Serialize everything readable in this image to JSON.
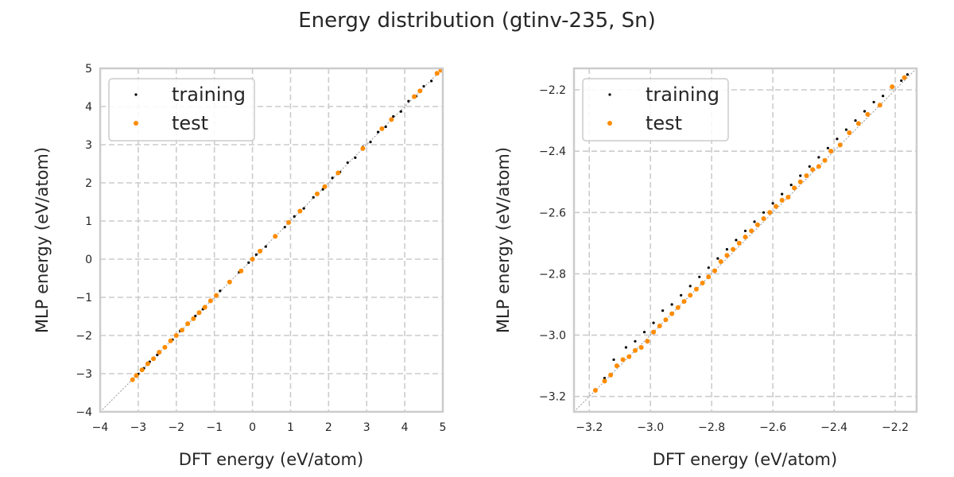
{
  "figure": {
    "title": "Energy distribution (gtinv-235, Sn)"
  },
  "colors": {
    "training": "#000000",
    "test": "#ff8c00",
    "grid": "#cccccc",
    "spine": "#cccccc",
    "diagonal": "#999999"
  },
  "chart_data": [
    {
      "type": "scatter",
      "xlabel": "DFT energy (eV/atom)",
      "ylabel": "MLP energy (eV/atom)",
      "xlim": [
        -4,
        5
      ],
      "ylim": [
        -4,
        5
      ],
      "xticks": [
        -4,
        -3,
        -2,
        -1,
        0,
        1,
        2,
        3,
        4,
        5
      ],
      "yticks": [
        -4,
        -3,
        -2,
        -1,
        0,
        1,
        2,
        3,
        4,
        5
      ],
      "tick_labels_x": [
        "−4",
        "−3",
        "−2",
        "−1",
        "0",
        "1",
        "2",
        "3",
        "4",
        "5"
      ],
      "tick_labels_y": [
        "−4",
        "−3",
        "−2",
        "−1",
        "0",
        "1",
        "2",
        "3",
        "4",
        "5"
      ],
      "grid": true,
      "legend_position": "upper-left",
      "diagonal": true,
      "series": [
        {
          "name": "training",
          "color": "#000000",
          "points": [
            [
              -3.15,
              -3.16
            ],
            [
              -3.0,
              -3.01
            ],
            [
              -2.85,
              -2.86
            ],
            [
              -2.7,
              -2.69
            ],
            [
              -2.5,
              -2.51
            ],
            [
              -2.3,
              -2.3
            ],
            [
              -2.1,
              -2.11
            ],
            [
              -1.9,
              -1.88
            ],
            [
              -1.7,
              -1.71
            ],
            [
              -1.5,
              -1.49
            ],
            [
              -1.3,
              -1.31
            ],
            [
              -1.1,
              -1.09
            ],
            [
              -0.85,
              -0.83
            ],
            [
              -0.6,
              -0.61
            ],
            [
              -0.35,
              -0.34
            ],
            [
              -0.1,
              -0.09
            ],
            [
              0.1,
              0.12
            ],
            [
              0.35,
              0.33
            ],
            [
              0.6,
              0.62
            ],
            [
              0.85,
              0.84
            ],
            [
              1.1,
              1.12
            ],
            [
              1.35,
              1.33
            ],
            [
              1.6,
              1.62
            ],
            [
              1.85,
              1.83
            ],
            [
              2.1,
              2.13
            ],
            [
              2.3,
              2.28
            ],
            [
              2.5,
              2.53
            ],
            [
              2.7,
              2.66
            ],
            [
              2.9,
              2.94
            ],
            [
              3.1,
              3.07
            ],
            [
              3.3,
              3.33
            ],
            [
              3.5,
              3.47
            ],
            [
              3.7,
              3.74
            ],
            [
              3.9,
              3.87
            ],
            [
              4.1,
              4.14
            ],
            [
              4.3,
              4.27
            ],
            [
              4.5,
              4.53
            ],
            [
              4.7,
              4.67
            ],
            [
              4.85,
              4.88
            ]
          ]
        },
        {
          "name": "test",
          "color": "#ff8c00",
          "points": [
            [
              -3.15,
              -3.16
            ],
            [
              -3.05,
              -3.05
            ],
            [
              -2.9,
              -2.9
            ],
            [
              -2.75,
              -2.74
            ],
            [
              -2.6,
              -2.61
            ],
            [
              -2.45,
              -2.44
            ],
            [
              -2.3,
              -2.31
            ],
            [
              -2.15,
              -2.14
            ],
            [
              -2.0,
              -2.0
            ],
            [
              -1.85,
              -1.86
            ],
            [
              -1.7,
              -1.69
            ],
            [
              -1.55,
              -1.56
            ],
            [
              -1.4,
              -1.4
            ],
            [
              -1.25,
              -1.26
            ],
            [
              -1.1,
              -1.09
            ],
            [
              -0.95,
              -0.95
            ],
            [
              -0.6,
              -0.6
            ],
            [
              -0.3,
              -0.31
            ],
            [
              0.0,
              0.0
            ],
            [
              0.2,
              0.21
            ],
            [
              0.6,
              0.6
            ],
            [
              0.95,
              0.96
            ],
            [
              1.25,
              1.26
            ],
            [
              1.7,
              1.71
            ],
            [
              1.9,
              1.9
            ],
            [
              2.25,
              2.26
            ],
            [
              2.9,
              2.9
            ],
            [
              3.4,
              3.42
            ],
            [
              3.65,
              3.66
            ],
            [
              4.25,
              4.26
            ],
            [
              4.4,
              4.41
            ],
            [
              4.85,
              4.87
            ],
            [
              4.95,
              4.95
            ]
          ]
        }
      ]
    },
    {
      "type": "scatter",
      "xlabel": "DFT energy (eV/atom)",
      "ylabel": "MLP energy (eV/atom)",
      "xlim": [
        -3.25,
        -2.13
      ],
      "ylim": [
        -3.25,
        -2.13
      ],
      "xticks": [
        -3.2,
        -3.0,
        -2.8,
        -2.6,
        -2.4,
        -2.2
      ],
      "yticks": [
        -3.2,
        -3.0,
        -2.8,
        -2.6,
        -2.4,
        -2.2
      ],
      "tick_labels_x": [
        "−3.2",
        "−3.0",
        "−2.8",
        "−2.6",
        "−2.4",
        "−2.2"
      ],
      "tick_labels_y": [
        "−3.2",
        "−3.0",
        "−2.8",
        "−2.6",
        "−2.4",
        "−2.2"
      ],
      "grid": true,
      "legend_position": "upper-left",
      "diagonal": true,
      "series": [
        {
          "name": "training",
          "color": "#000000",
          "points": [
            [
              -3.15,
              -3.14
            ],
            [
              -3.12,
              -3.08
            ],
            [
              -3.08,
              -3.04
            ],
            [
              -3.05,
              -3.02
            ],
            [
              -3.02,
              -2.99
            ],
            [
              -2.99,
              -2.96
            ],
            [
              -2.96,
              -2.92
            ],
            [
              -2.93,
              -2.9
            ],
            [
              -2.9,
              -2.87
            ],
            [
              -2.87,
              -2.84
            ],
            [
              -2.84,
              -2.81
            ],
            [
              -2.81,
              -2.78
            ],
            [
              -2.78,
              -2.75
            ],
            [
              -2.75,
              -2.72
            ],
            [
              -2.72,
              -2.69
            ],
            [
              -2.69,
              -2.66
            ],
            [
              -2.66,
              -2.63
            ],
            [
              -2.63,
              -2.6
            ],
            [
              -2.6,
              -2.57
            ],
            [
              -2.57,
              -2.54
            ],
            [
              -2.54,
              -2.51
            ],
            [
              -2.51,
              -2.48
            ],
            [
              -2.48,
              -2.45
            ],
            [
              -2.45,
              -2.42
            ],
            [
              -2.42,
              -2.39
            ],
            [
              -2.39,
              -2.36
            ],
            [
              -2.36,
              -2.33
            ],
            [
              -2.33,
              -2.3
            ],
            [
              -2.3,
              -2.27
            ],
            [
              -2.27,
              -2.24
            ],
            [
              -2.24,
              -2.22
            ],
            [
              -2.21,
              -2.19
            ],
            [
              -2.18,
              -2.17
            ],
            [
              -2.16,
              -2.15
            ]
          ]
        },
        {
          "name": "test",
          "color": "#ff8c00",
          "points": [
            [
              -3.18,
              -3.18
            ],
            [
              -3.15,
              -3.15
            ],
            [
              -3.13,
              -3.13
            ],
            [
              -3.11,
              -3.1
            ],
            [
              -3.09,
              -3.08
            ],
            [
              -3.07,
              -3.07
            ],
            [
              -3.05,
              -3.05
            ],
            [
              -3.03,
              -3.04
            ],
            [
              -3.01,
              -3.02
            ],
            [
              -2.99,
              -2.99
            ],
            [
              -2.97,
              -2.97
            ],
            [
              -2.95,
              -2.95
            ],
            [
              -2.93,
              -2.93
            ],
            [
              -2.91,
              -2.91
            ],
            [
              -2.89,
              -2.89
            ],
            [
              -2.87,
              -2.87
            ],
            [
              -2.85,
              -2.85
            ],
            [
              -2.83,
              -2.83
            ],
            [
              -2.81,
              -2.81
            ],
            [
              -2.79,
              -2.79
            ],
            [
              -2.77,
              -2.76
            ],
            [
              -2.75,
              -2.74
            ],
            [
              -2.73,
              -2.72
            ],
            [
              -2.71,
              -2.7
            ],
            [
              -2.69,
              -2.68
            ],
            [
              -2.67,
              -2.66
            ],
            [
              -2.65,
              -2.64
            ],
            [
              -2.63,
              -2.62
            ],
            [
              -2.61,
              -2.6
            ],
            [
              -2.59,
              -2.58
            ],
            [
              -2.57,
              -2.56
            ],
            [
              -2.55,
              -2.55
            ],
            [
              -2.53,
              -2.52
            ],
            [
              -2.51,
              -2.5
            ],
            [
              -2.49,
              -2.48
            ],
            [
              -2.47,
              -2.46
            ],
            [
              -2.45,
              -2.45
            ],
            [
              -2.43,
              -2.43
            ],
            [
              -2.41,
              -2.4
            ],
            [
              -2.38,
              -2.38
            ],
            [
              -2.35,
              -2.34
            ],
            [
              -2.32,
              -2.31
            ],
            [
              -2.29,
              -2.28
            ],
            [
              -2.25,
              -2.25
            ],
            [
              -2.21,
              -2.19
            ],
            [
              -2.17,
              -2.16
            ]
          ]
        }
      ]
    }
  ]
}
